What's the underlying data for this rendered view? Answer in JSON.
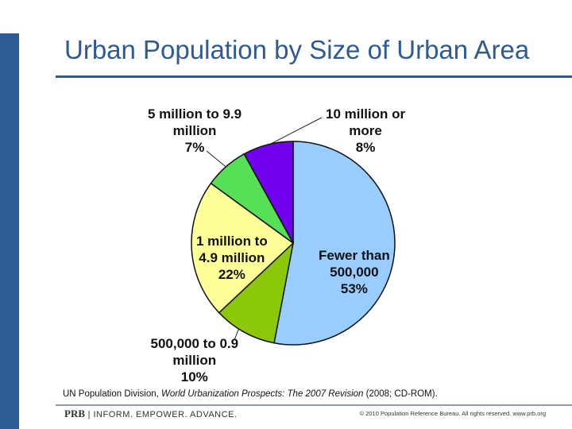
{
  "slide": {
    "title": "Urban Population by Size of Urban Area",
    "source_prefix": "UN Population Division, ",
    "source_title": "World Urbanization Prospects: The 2007 Revision",
    "source_suffix": " (2008; CD-ROM).",
    "brand_abbr": "PRB",
    "brand_sep": "|",
    "brand_tagline": "INFORM. EMPOWER. ADVANCE.",
    "copyright": "© 2010 Population Reference Bureau. All rights reserved. www.prb.org"
  },
  "colors": {
    "accent": "#2e5b94"
  },
  "chart_data": {
    "type": "pie",
    "title": "",
    "slices": [
      {
        "name": "Fewer than 500,000",
        "label_lines": [
          "Fewer than",
          "500,000",
          "53%"
        ],
        "value": 53,
        "color": "#99ccff"
      },
      {
        "name": "500,000 to 0.9 million",
        "label_lines": [
          "500,000 to 0.9",
          "million",
          "10%"
        ],
        "value": 10,
        "color": "#8bc80a"
      },
      {
        "name": "1 million to 4.9 million",
        "label_lines": [
          "1 million to",
          "4.9 million",
          "22%"
        ],
        "value": 22,
        "color": "#ffff99"
      },
      {
        "name": "5 million to 9.9 million",
        "label_lines": [
          "5 million to 9.9",
          "million",
          "7%"
        ],
        "value": 7,
        "color": "#55e055"
      },
      {
        "name": "10 million or more",
        "label_lines": [
          "10 million or",
          "more",
          "8%"
        ],
        "value": 8,
        "color": "#7000ee"
      }
    ],
    "start": "12 o'clock",
    "direction": "clockwise"
  }
}
